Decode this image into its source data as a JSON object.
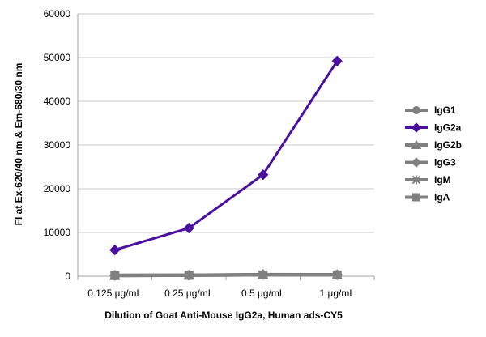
{
  "chart_data": {
    "type": "line",
    "x": [
      "0.125 µg/mL",
      "0.25 µg/mL",
      "0.5 µg/mL",
      "1 µg/mL"
    ],
    "xlabel": "Dilution of Goat Anti-Mouse IgG2a, Human ads-CY5",
    "ylabel": "FI at Ex-620/40 nm & Em-680/30 nm",
    "ylim": [
      0,
      60000
    ],
    "yticks": [
      0,
      10000,
      20000,
      30000,
      40000,
      50000,
      60000
    ],
    "grid": "horizontal",
    "legend_position": "right",
    "series": [
      {
        "name": "IgG1",
        "marker": "circle",
        "color": "#808080",
        "values": [
          200,
          200,
          300,
          300
        ]
      },
      {
        "name": "IgG2a",
        "marker": "diamond",
        "color": "#4b0fa0",
        "values": [
          6000,
          11000,
          23200,
          49200
        ]
      },
      {
        "name": "IgG2b",
        "marker": "triangle",
        "color": "#808080",
        "values": [
          200,
          250,
          350,
          300
        ]
      },
      {
        "name": "IgG3",
        "marker": "diamond",
        "color": "#808080",
        "values": [
          200,
          250,
          400,
          350
        ]
      },
      {
        "name": "IgM",
        "marker": "star",
        "color": "#808080",
        "values": [
          150,
          200,
          300,
          300
        ]
      },
      {
        "name": "IgA",
        "marker": "square",
        "color": "#808080",
        "values": [
          150,
          200,
          300,
          300
        ]
      }
    ]
  }
}
